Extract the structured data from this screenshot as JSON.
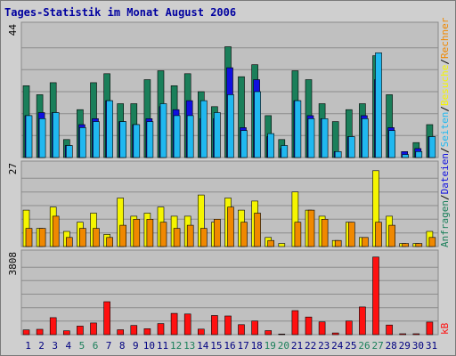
{
  "chart_data": {
    "type": "bar",
    "title": "Tages-Statistik im Monat August 2006",
    "categories": [
      "1",
      "2",
      "3",
      "4",
      "5",
      "6",
      "7",
      "8",
      "9",
      "10",
      "11",
      "12",
      "13",
      "14",
      "15",
      "16",
      "17",
      "18",
      "19",
      "20",
      "21",
      "22",
      "23",
      "24",
      "25",
      "26",
      "27",
      "28",
      "29",
      "30",
      "31"
    ],
    "weekend_days": [
      "5",
      "6",
      "12",
      "13",
      "19",
      "20",
      "26",
      "27"
    ],
    "panels": [
      {
        "id": "requests",
        "ymax_label": "44",
        "ymax": 44,
        "series": [
          {
            "name": "Anfragen",
            "color": "#1a7f5a",
            "values": [
              24,
              21,
              25,
              6,
              16,
              25,
              28,
              18,
              18,
              26,
              29,
              24,
              28,
              22,
              17,
              37,
              27,
              31,
              14,
              6,
              29,
              26,
              18,
              12,
              16,
              18,
              34,
              21,
              0,
              5,
              11
            ]
          },
          {
            "name": "Dateien",
            "color": "#1010e0",
            "values": [
              14,
              15,
              15,
              4,
              11,
              13,
              19,
              12,
              11,
              13,
              17,
              16,
              19,
              13,
              13,
              30,
              10,
              26,
              7,
              3,
              19,
              14,
              13,
              2,
              7,
              14,
              26,
              10,
              2,
              3,
              7
            ]
          },
          {
            "name": "Seiten",
            "color": "#20b8f0",
            "values": [
              14,
              13,
              15,
              4,
              10,
              12,
              19,
              12,
              11,
              12,
              18,
              14,
              14,
              19,
              15,
              21,
              9,
              22,
              8,
              4,
              19,
              13,
              13,
              2,
              7,
              13,
              35,
              9,
              1,
              2,
              7
            ]
          }
        ]
      },
      {
        "id": "visits",
        "ymax_label": "27",
        "ymax": 27,
        "series": [
          {
            "name": "Besuche",
            "color": "#f5f500",
            "values": [
              12,
              6,
              13,
              5,
              8,
              11,
              4,
              16,
              10,
              11,
              13,
              10,
              10,
              17,
              8,
              16,
              12,
              15,
              3,
              1,
              18,
              12,
              10,
              2,
              8,
              3,
              25,
              10,
              1,
              1,
              5
            ]
          },
          {
            "name": "Rechner",
            "color": "#f08800",
            "values": [
              6,
              6,
              10,
              3,
              6,
              6,
              3,
              7,
              9,
              9,
              8,
              6,
              7,
              6,
              9,
              13,
              8,
              11,
              2,
              0,
              8,
              12,
              9,
              2,
              8,
              3,
              8,
              7,
              1,
              1,
              3
            ]
          }
        ]
      },
      {
        "id": "traffic",
        "ymax_label": "3808",
        "ymax": 3808,
        "series": [
          {
            "name": "kB",
            "color": "#ff1010",
            "values": [
              220,
              250,
              800,
              180,
              400,
              550,
              1550,
              230,
              430,
              280,
              520,
              1000,
              970,
              260,
              900,
              880,
              470,
              640,
              190,
              30,
              1130,
              830,
              600,
              80,
              640,
              1300,
              3650,
              450,
              40,
              40,
              590
            ]
          }
        ]
      }
    ],
    "legend": [
      {
        "text": "Anfragen",
        "color": "#1a7f5a"
      },
      {
        "text": "/",
        "color": "#000000"
      },
      {
        "text": "Dateien",
        "color": "#1010e0"
      },
      {
        "text": "/",
        "color": "#000000"
      },
      {
        "text": "Seiten",
        "color": "#20b8f0"
      },
      {
        "text": "/",
        "color": "#000000"
      },
      {
        "text": "Besuche",
        "color": "#f5f500"
      },
      {
        "text": "/",
        "color": "#000000"
      },
      {
        "text": "Rechner",
        "color": "#f08800"
      }
    ],
    "kb_label": "kB",
    "kb_color": "#ff1010",
    "weekday_color": "#000080",
    "weekend_color": "#1a7f5a",
    "grid": true,
    "legend_position": "right"
  }
}
